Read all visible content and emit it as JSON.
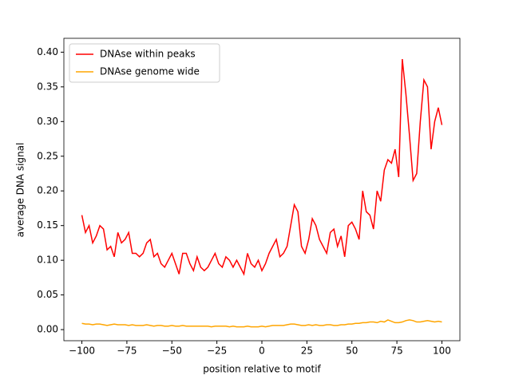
{
  "chart_data": {
    "type": "line",
    "xlabel": "position relative to motif",
    "ylabel": "average DNA signal",
    "x": [
      -100,
      -98,
      -96,
      -94,
      -92,
      -90,
      -88,
      -86,
      -84,
      -82,
      -80,
      -78,
      -76,
      -74,
      -72,
      -70,
      -68,
      -66,
      -64,
      -62,
      -60,
      -58,
      -56,
      -54,
      -52,
      -50,
      -48,
      -46,
      -44,
      -42,
      -40,
      -38,
      -36,
      -34,
      -32,
      -30,
      -28,
      -26,
      -24,
      -22,
      -20,
      -18,
      -16,
      -14,
      -12,
      -10,
      -8,
      -6,
      -4,
      -2,
      0,
      2,
      4,
      6,
      8,
      10,
      12,
      14,
      16,
      18,
      20,
      22,
      24,
      26,
      28,
      30,
      32,
      34,
      36,
      38,
      40,
      42,
      44,
      46,
      48,
      50,
      52,
      54,
      56,
      58,
      60,
      62,
      64,
      66,
      68,
      70,
      72,
      74,
      76,
      78,
      80,
      82,
      84,
      86,
      88,
      90,
      92,
      94,
      96,
      98,
      100
    ],
    "series": [
      {
        "name": "DNAse within peaks",
        "color": "#ff0000",
        "values": [
          0.165,
          0.14,
          0.15,
          0.125,
          0.135,
          0.15,
          0.145,
          0.115,
          0.12,
          0.105,
          0.14,
          0.125,
          0.13,
          0.14,
          0.11,
          0.11,
          0.105,
          0.11,
          0.125,
          0.13,
          0.105,
          0.11,
          0.095,
          0.09,
          0.1,
          0.11,
          0.095,
          0.08,
          0.11,
          0.11,
          0.095,
          0.085,
          0.105,
          0.09,
          0.085,
          0.09,
          0.1,
          0.11,
          0.095,
          0.09,
          0.105,
          0.1,
          0.09,
          0.1,
          0.09,
          0.08,
          0.11,
          0.095,
          0.09,
          0.1,
          0.085,
          0.095,
          0.11,
          0.12,
          0.13,
          0.105,
          0.11,
          0.12,
          0.15,
          0.18,
          0.17,
          0.12,
          0.11,
          0.13,
          0.16,
          0.15,
          0.13,
          0.12,
          0.11,
          0.14,
          0.145,
          0.12,
          0.135,
          0.105,
          0.15,
          0.155,
          0.145,
          0.13,
          0.2,
          0.17,
          0.165,
          0.145,
          0.2,
          0.185,
          0.23,
          0.245,
          0.24,
          0.26,
          0.22,
          0.39,
          0.34,
          0.28,
          0.215,
          0.225,
          0.3,
          0.36,
          0.35,
          0.26,
          0.3,
          0.32,
          0.295
        ]
      },
      {
        "name": "DNAse genome wide",
        "color": "#ffa500",
        "values": [
          0.009,
          0.008,
          0.008,
          0.007,
          0.008,
          0.008,
          0.007,
          0.006,
          0.007,
          0.008,
          0.007,
          0.007,
          0.007,
          0.006,
          0.007,
          0.006,
          0.006,
          0.006,
          0.007,
          0.006,
          0.005,
          0.006,
          0.006,
          0.005,
          0.005,
          0.006,
          0.005,
          0.005,
          0.006,
          0.005,
          0.005,
          0.005,
          0.005,
          0.005,
          0.005,
          0.005,
          0.004,
          0.005,
          0.005,
          0.005,
          0.005,
          0.004,
          0.005,
          0.004,
          0.004,
          0.004,
          0.005,
          0.004,
          0.004,
          0.004,
          0.005,
          0.004,
          0.005,
          0.006,
          0.006,
          0.006,
          0.006,
          0.007,
          0.008,
          0.008,
          0.007,
          0.006,
          0.006,
          0.007,
          0.006,
          0.007,
          0.006,
          0.006,
          0.007,
          0.007,
          0.006,
          0.006,
          0.007,
          0.007,
          0.008,
          0.008,
          0.009,
          0.009,
          0.01,
          0.01,
          0.011,
          0.011,
          0.01,
          0.012,
          0.011,
          0.014,
          0.012,
          0.01,
          0.01,
          0.011,
          0.013,
          0.014,
          0.013,
          0.011,
          0.011,
          0.012,
          0.013,
          0.012,
          0.011,
          0.012,
          0.011
        ]
      }
    ],
    "xlim": [
      -110,
      110
    ],
    "ylim": [
      -0.016,
      0.42
    ],
    "xticks": [
      {
        "value": -100,
        "label": "−100"
      },
      {
        "value": -75,
        "label": "−75"
      },
      {
        "value": -50,
        "label": "−50"
      },
      {
        "value": -25,
        "label": "−25"
      },
      0,
      25,
      50,
      75,
      100
    ],
    "yticks": [
      {
        "value": 0,
        "label": "0.00"
      },
      {
        "value": 0.05,
        "label": "0.05"
      },
      {
        "value": 0.1,
        "label": "0.10"
      },
      {
        "value": 0.15,
        "label": "0.15"
      },
      {
        "value": 0.2,
        "label": "0.20"
      },
      {
        "value": 0.25,
        "label": "0.25"
      },
      {
        "value": 0.3,
        "label": "0.30"
      },
      {
        "value": 0.35,
        "label": "0.35"
      },
      {
        "value": 0.4,
        "label": "0.40"
      }
    ],
    "legend": "upper left"
  }
}
